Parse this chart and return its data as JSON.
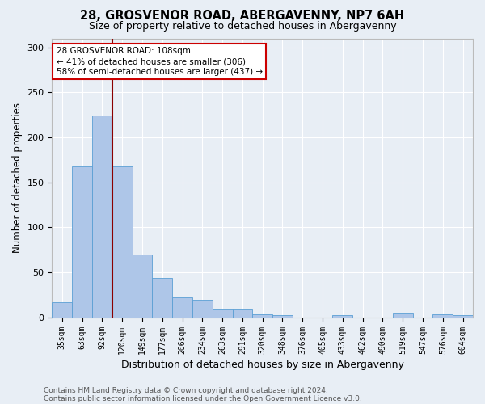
{
  "title1": "28, GROSVENOR ROAD, ABERGAVENNY, NP7 6AH",
  "title2": "Size of property relative to detached houses in Abergavenny",
  "xlabel": "Distribution of detached houses by size in Abergavenny",
  "ylabel": "Number of detached properties",
  "categories": [
    "35sqm",
    "63sqm",
    "92sqm",
    "120sqm",
    "149sqm",
    "177sqm",
    "206sqm",
    "234sqm",
    "263sqm",
    "291sqm",
    "320sqm",
    "348sqm",
    "376sqm",
    "405sqm",
    "433sqm",
    "462sqm",
    "490sqm",
    "519sqm",
    "547sqm",
    "576sqm",
    "604sqm"
  ],
  "values": [
    17,
    168,
    224,
    168,
    70,
    44,
    22,
    19,
    9,
    9,
    3,
    2,
    0,
    0,
    2,
    0,
    0,
    5,
    0,
    3,
    2
  ],
  "bar_color": "#aec6e8",
  "bar_edge_color": "#5a9fd4",
  "bg_color": "#e8eef5",
  "vline_color": "#8b0000",
  "annotation_text": "28 GROSVENOR ROAD: 108sqm\n← 41% of detached houses are smaller (306)\n58% of semi-detached houses are larger (437) →",
  "annotation_box_color": "white",
  "annotation_box_edge": "#cc0000",
  "footer1": "Contains HM Land Registry data © Crown copyright and database right 2024.",
  "footer2": "Contains public sector information licensed under the Open Government Licence v3.0.",
  "ylim": [
    0,
    310
  ],
  "title1_fontsize": 10.5,
  "title2_fontsize": 9,
  "xlabel_fontsize": 9,
  "ylabel_fontsize": 8.5,
  "tick_fontsize": 7,
  "footer_fontsize": 6.5,
  "annotation_fontsize": 7.5
}
